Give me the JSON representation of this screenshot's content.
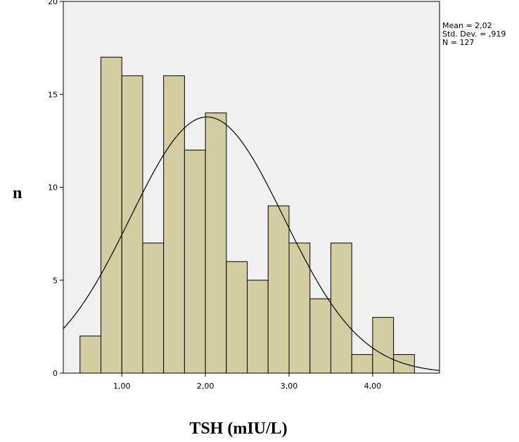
{
  "chart_data": {
    "type": "bar",
    "subtype": "histogram",
    "xlabel": "TSH (mIU/L)",
    "ylabel": "n",
    "xlim": [
      0.3,
      4.8
    ],
    "ylim": [
      0,
      20
    ],
    "x_ticks": [
      {
        "value": 1,
        "label": "1,00"
      },
      {
        "value": 2,
        "label": "2,00"
      },
      {
        "value": 3,
        "label": "3,00"
      },
      {
        "value": 4,
        "label": "4,00"
      }
    ],
    "y_ticks": [
      {
        "value": 0,
        "label": "0"
      },
      {
        "value": 5,
        "label": "5"
      },
      {
        "value": 10,
        "label": "10"
      },
      {
        "value": 15,
        "label": "15"
      },
      {
        "value": 20,
        "label": "20"
      }
    ],
    "bin_edges": [
      0.5,
      0.75,
      1.0,
      1.25,
      1.5,
      1.75,
      2.0,
      2.25,
      2.5,
      2.75,
      3.0,
      3.25,
      3.5,
      3.75,
      4.0,
      4.25,
      4.5
    ],
    "values": [
      2,
      17,
      16,
      7,
      16,
      12,
      14,
      6,
      5,
      9,
      7,
      4,
      7,
      1,
      3,
      1
    ],
    "normal_curve": {
      "mean": 2.02,
      "sd": 0.919,
      "n": 127,
      "bin_width": 0.25
    },
    "stats_lines": [
      "Mean = 2,02",
      "Std. Dev. = ,919",
      "N = 127"
    ],
    "colors": {
      "bar_fill": "#D3CE9F",
      "bar_stroke": "#000000",
      "plot_background": "#F0F0F0",
      "curve": "#000000"
    },
    "grid": false
  }
}
